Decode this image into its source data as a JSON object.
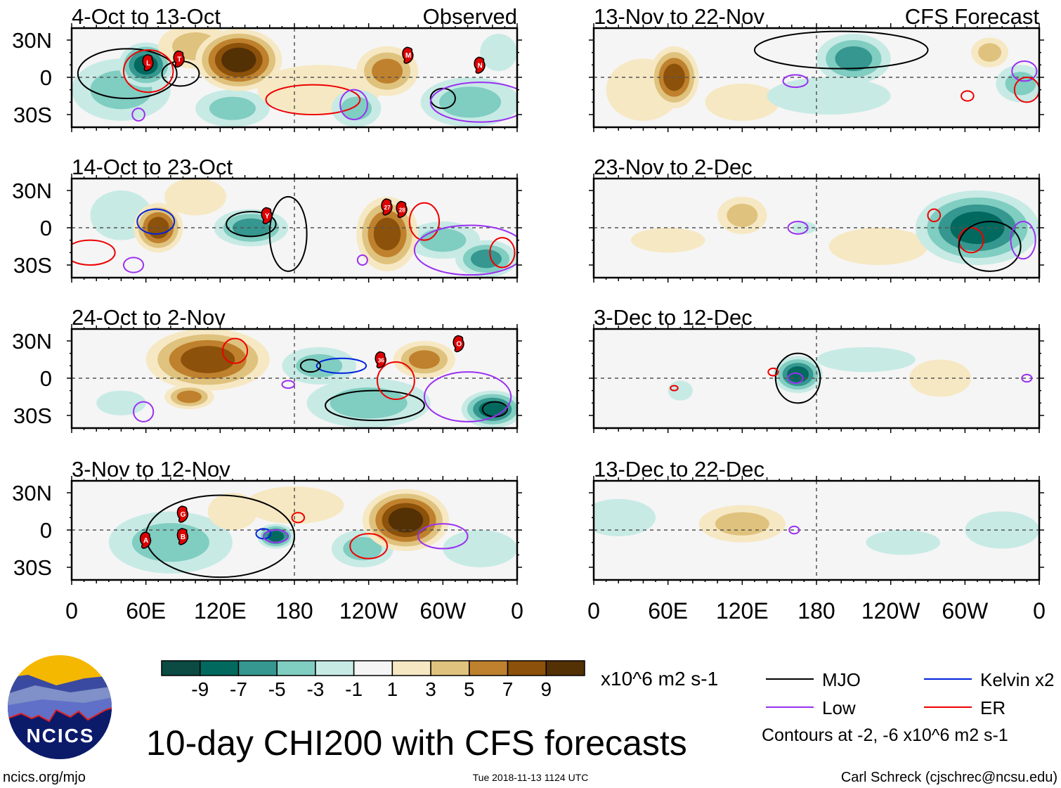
{
  "figure": {
    "title": "10-day CHI200 with CFS forecasts",
    "site": "ncics.org/mjo",
    "timestamp": "Tue 2018-11-13 1124 UTC",
    "author": "Carl Schreck (cjschrec@ncsu.edu)",
    "logo_text": "NCICS",
    "observed_label": "Observed",
    "forecast_label": "CFS Forecast"
  },
  "axes": {
    "lat_labels": [
      {
        "lat": 30,
        "text": "30N"
      },
      {
        "lat": 0,
        "text": "0"
      },
      {
        "lat": -30,
        "text": "30S"
      }
    ],
    "lon_labels": [
      {
        "lon": 0,
        "text": "0"
      },
      {
        "lon": 60,
        "text": "60E"
      },
      {
        "lon": 120,
        "text": "120E"
      },
      {
        "lon": 180,
        "text": "180"
      },
      {
        "lon": 240,
        "text": "120W"
      },
      {
        "lon": 300,
        "text": "60W"
      },
      {
        "lon": 360,
        "text": "0"
      }
    ],
    "lon_range": [
      0,
      360
    ],
    "lat_range": [
      -40,
      40
    ]
  },
  "colorbar": {
    "units": "x10^6 m2 s-1",
    "labels": [
      "-9",
      "-7",
      "-5",
      "-3",
      "-1",
      "1",
      "3",
      "5",
      "7",
      "9"
    ],
    "levels": [
      -9,
      -7,
      -5,
      -3,
      -1,
      1,
      3,
      5,
      7,
      9
    ],
    "colors": [
      "#0c4a44",
      "#02695f",
      "#35978f",
      "#80cdc1",
      "#c7eae5",
      "#f5f5f5",
      "#f6e8c3",
      "#dfc27d",
      "#bf812d",
      "#8c510a",
      "#543005"
    ]
  },
  "legend": {
    "items": [
      {
        "name": "MJO",
        "color": "#000000"
      },
      {
        "name": "Kelvin x2",
        "color": "#0022dd"
      },
      {
        "name": "Low",
        "color": "#9a30f0"
      },
      {
        "name": "ER",
        "color": "#ee0000"
      }
    ],
    "note": "Contours at -2, -6 x10^6 m2 s-1"
  },
  "contour_colors": {
    "MJO": "#000000",
    "Kelvin": "#0022dd",
    "Low": "#9a30f0",
    "ER": "#ee0000"
  },
  "panels": [
    {
      "title": "4-Oct to 13-Oct",
      "column": "observed",
      "anomalies": [
        {
          "lon": 40,
          "lat": -10,
          "rlon": 40,
          "rlat": 25,
          "value": -4
        },
        {
          "lon": 60,
          "lat": 10,
          "rlon": 22,
          "rlat": 18,
          "value": -8
        },
        {
          "lon": 130,
          "lat": -25,
          "rlon": 30,
          "rlat": 15,
          "value": -4
        },
        {
          "lon": 100,
          "lat": 25,
          "rlon": 30,
          "rlat": 18,
          "value": 4
        },
        {
          "lon": 135,
          "lat": 14,
          "rlon": 35,
          "rlat": 25,
          "value": 10
        },
        {
          "lon": 200,
          "lat": -10,
          "rlon": 50,
          "rlat": 20,
          "value": 2
        },
        {
          "lon": 255,
          "lat": 5,
          "rlon": 25,
          "rlat": 20,
          "value": 6
        },
        {
          "lon": 230,
          "lat": -25,
          "rlon": 20,
          "rlat": 15,
          "value": -5
        },
        {
          "lon": 322,
          "lat": -20,
          "rlon": 40,
          "rlat": 20,
          "value": -4
        },
        {
          "lon": 345,
          "lat": 20,
          "rlon": 15,
          "rlat": 15,
          "value": -3
        }
      ],
      "contours": [
        {
          "type": "MJO",
          "lon": 45,
          "lat": 3,
          "rlon": 40,
          "rlat": 20
        },
        {
          "type": "MJO",
          "lon": 88,
          "lat": 3,
          "rlon": 15,
          "rlat": 10
        },
        {
          "type": "MJO",
          "lon": 300,
          "lat": -17,
          "rlon": 10,
          "rlat": 8
        },
        {
          "type": "ER",
          "lon": 62,
          "lat": 5,
          "rlon": 20,
          "rlat": 17
        },
        {
          "type": "ER",
          "lon": 195,
          "lat": -18,
          "rlon": 38,
          "rlat": 12
        },
        {
          "type": "Low",
          "lon": 228,
          "lat": -22,
          "rlon": 11,
          "rlat": 12
        },
        {
          "type": "Low",
          "lon": 54,
          "lat": -30,
          "rlon": 5,
          "rlat": 5
        },
        {
          "type": "Low",
          "lon": 330,
          "lat": -20,
          "rlon": 40,
          "rlat": 16
        }
      ],
      "storms": [
        {
          "label": "L",
          "lon": 62,
          "lat": 12
        },
        {
          "label": "T",
          "lon": 87,
          "lat": 15
        },
        {
          "label": "M",
          "lon": 272,
          "lat": 18
        },
        {
          "label": "N",
          "lon": 330,
          "lat": 10
        }
      ]
    },
    {
      "title": "14-Oct to 23-Oct",
      "column": "observed",
      "anomalies": [
        {
          "lon": 40,
          "lat": 10,
          "rlon": 25,
          "rlat": 20,
          "value": -3
        },
        {
          "lon": 100,
          "lat": 25,
          "rlon": 25,
          "rlat": 15,
          "value": 3
        },
        {
          "lon": 70,
          "lat": 0,
          "rlon": 20,
          "rlat": 20,
          "value": 8
        },
        {
          "lon": 145,
          "lat": 0,
          "rlon": 30,
          "rlat": 15,
          "value": -7
        },
        {
          "lon": 300,
          "lat": -10,
          "rlon": 30,
          "rlat": 15,
          "value": -4
        },
        {
          "lon": 255,
          "lat": -5,
          "rlon": 25,
          "rlat": 30,
          "value": 9
        },
        {
          "lon": 335,
          "lat": -25,
          "rlon": 25,
          "rlat": 15,
          "value": -7
        }
      ],
      "contours": [
        {
          "type": "Kelvin",
          "lon": 68,
          "lat": 5,
          "rlon": 15,
          "rlat": 10
        },
        {
          "type": "MJO",
          "lon": 145,
          "lat": 3,
          "rlon": 20,
          "rlat": 10
        },
        {
          "type": "MJO",
          "lon": 175,
          "lat": -5,
          "rlon": 15,
          "rlat": 30
        },
        {
          "type": "ER",
          "lon": 15,
          "lat": -20,
          "rlon": 20,
          "rlat": 10
        },
        {
          "type": "ER",
          "lon": 285,
          "lat": 5,
          "rlon": 12,
          "rlat": 15
        },
        {
          "type": "ER",
          "lon": 348,
          "lat": -20,
          "rlon": 10,
          "rlat": 12
        },
        {
          "type": "Low",
          "lon": 50,
          "lat": -30,
          "rlon": 8,
          "rlat": 6
        },
        {
          "type": "Low",
          "lon": 235,
          "lat": -26,
          "rlon": 4,
          "rlat": 4
        },
        {
          "type": "Low",
          "lon": 322,
          "lat": -18,
          "rlon": 45,
          "rlat": 20
        }
      ],
      "storms": [
        {
          "label": "Y",
          "lon": 158,
          "lat": 10
        },
        {
          "label": "27",
          "lon": 255,
          "lat": 17
        },
        {
          "label": "28",
          "lon": 267,
          "lat": 15
        }
      ]
    },
    {
      "title": "24-Oct to 2-Nov",
      "column": "observed",
      "anomalies": [
        {
          "lon": 110,
          "lat": 15,
          "rlon": 50,
          "rlat": 25,
          "value": 9
        },
        {
          "lon": 95,
          "lat": -15,
          "rlon": 20,
          "rlat": 10,
          "value": 6
        },
        {
          "lon": 40,
          "lat": -20,
          "rlon": 20,
          "rlat": 10,
          "value": -3
        },
        {
          "lon": 200,
          "lat": 10,
          "rlon": 30,
          "rlat": 15,
          "value": -5
        },
        {
          "lon": 240,
          "lat": -20,
          "rlon": 50,
          "rlat": 20,
          "value": -5
        },
        {
          "lon": 285,
          "lat": 15,
          "rlon": 25,
          "rlat": 15,
          "value": 6
        },
        {
          "lon": 340,
          "lat": -25,
          "rlon": 25,
          "rlat": 15,
          "value": -8
        }
      ],
      "contours": [
        {
          "type": "ER",
          "lon": 132,
          "lat": 22,
          "rlon": 10,
          "rlat": 10
        },
        {
          "type": "Kelvin",
          "lon": 218,
          "lat": 10,
          "rlon": 20,
          "rlat": 6
        },
        {
          "type": "MJO",
          "lon": 193,
          "lat": 10,
          "rlon": 8,
          "rlat": 5
        },
        {
          "type": "MJO",
          "lon": 245,
          "lat": -22,
          "rlon": 40,
          "rlat": 12
        },
        {
          "type": "ER",
          "lon": 262,
          "lat": -2,
          "rlon": 15,
          "rlat": 15
        },
        {
          "type": "MJO",
          "lon": 342,
          "lat": -25,
          "rlon": 10,
          "rlat": 6
        },
        {
          "type": "Low",
          "lon": 175,
          "lat": -5,
          "rlon": 5,
          "rlat": 3
        },
        {
          "type": "Low",
          "lon": 58,
          "lat": -27,
          "rlon": 8,
          "rlat": 8
        },
        {
          "type": "Low",
          "lon": 320,
          "lat": -15,
          "rlon": 35,
          "rlat": 20
        }
      ],
      "storms": [
        {
          "label": "36",
          "lon": 250,
          "lat": 15
        },
        {
          "label": "O",
          "lon": 313,
          "lat": 28
        }
      ]
    },
    {
      "title": "3-Nov to 12-Nov",
      "column": "observed",
      "anomalies": [
        {
          "lon": 80,
          "lat": -10,
          "rlon": 50,
          "rlat": 25,
          "value": -5
        },
        {
          "lon": 130,
          "lat": 15,
          "rlon": 20,
          "rlat": 15,
          "value": 3
        },
        {
          "lon": 180,
          "lat": 20,
          "rlon": 40,
          "rlat": 15,
          "value": 3
        },
        {
          "lon": 165,
          "lat": -5,
          "rlon": 15,
          "rlat": 10,
          "value": -8
        },
        {
          "lon": 235,
          "lat": -15,
          "rlon": 25,
          "rlat": 15,
          "value": -4
        },
        {
          "lon": 270,
          "lat": 8,
          "rlon": 35,
          "rlat": 25,
          "value": 10
        },
        {
          "lon": 330,
          "lat": -15,
          "rlon": 30,
          "rlat": 15,
          "value": -3
        }
      ],
      "contours": [
        {
          "type": "MJO",
          "lon": 120,
          "lat": -5,
          "rlon": 60,
          "rlat": 33
        },
        {
          "type": "Kelvin",
          "lon": 155,
          "lat": -3,
          "rlon": 6,
          "rlat": 4
        },
        {
          "type": "Low",
          "lon": 165,
          "lat": -5,
          "rlon": 10,
          "rlat": 5
        },
        {
          "type": "ER",
          "lon": 183,
          "lat": 10,
          "rlon": 5,
          "rlat": 4
        },
        {
          "type": "ER",
          "lon": 240,
          "lat": -13,
          "rlon": 15,
          "rlat": 10
        },
        {
          "type": "Low",
          "lon": 300,
          "lat": -5,
          "rlon": 20,
          "rlat": 10
        }
      ],
      "storms": [
        {
          "label": "G",
          "lon": 90,
          "lat": 13
        },
        {
          "label": "A",
          "lon": 60,
          "lat": -8
        },
        {
          "label": "B",
          "lon": 90,
          "lat": -5
        }
      ]
    },
    {
      "title": "13-Nov to 22-Nov",
      "column": "forecast",
      "anomalies": [
        {
          "lon": 40,
          "lat": -10,
          "rlon": 30,
          "rlat": 25,
          "value": 3
        },
        {
          "lon": 65,
          "lat": 0,
          "rlon": 20,
          "rlat": 25,
          "value": 8
        },
        {
          "lon": 120,
          "lat": -20,
          "rlon": 30,
          "rlat": 15,
          "value": 2
        },
        {
          "lon": 190,
          "lat": -15,
          "rlon": 50,
          "rlat": 15,
          "value": -2
        },
        {
          "lon": 210,
          "lat": 15,
          "rlon": 30,
          "rlat": 20,
          "value": -6
        },
        {
          "lon": 320,
          "lat": 20,
          "rlon": 15,
          "rlat": 12,
          "value": 4
        },
        {
          "lon": 345,
          "lat": -5,
          "rlon": 20,
          "rlat": 15,
          "value": -4
        }
      ],
      "contours": [
        {
          "type": "MJO",
          "lon": 200,
          "lat": 22,
          "rlon": 70,
          "rlat": 15
        },
        {
          "type": "Low",
          "lon": 163,
          "lat": -3,
          "rlon": 10,
          "rlat": 5
        },
        {
          "type": "Low",
          "lon": 348,
          "lat": 5,
          "rlon": 10,
          "rlat": 8
        },
        {
          "type": "ER",
          "lon": 350,
          "lat": -10,
          "rlon": 10,
          "rlat": 10
        },
        {
          "type": "ER",
          "lon": 302,
          "lat": -15,
          "rlon": 5,
          "rlat": 4
        }
      ],
      "storms": []
    },
    {
      "title": "23-Nov to 2-Dec",
      "column": "forecast",
      "anomalies": [
        {
          "lon": 60,
          "lat": -10,
          "rlon": 30,
          "rlat": 10,
          "value": 3
        },
        {
          "lon": 120,
          "lat": 10,
          "rlon": 20,
          "rlat": 15,
          "value": 4
        },
        {
          "lon": 230,
          "lat": -15,
          "rlon": 40,
          "rlat": 15,
          "value": 3
        },
        {
          "lon": 170,
          "lat": 0,
          "rlon": 10,
          "rlat": 5,
          "value": -2
        },
        {
          "lon": 310,
          "lat": 0,
          "rlon": 50,
          "rlat": 30,
          "value": -9
        }
      ],
      "contours": [
        {
          "type": "ER",
          "lon": 305,
          "lat": -10,
          "rlon": 10,
          "rlat": 10
        },
        {
          "type": "ER",
          "lon": 275,
          "lat": 10,
          "rlon": 5,
          "rlat": 5
        },
        {
          "type": "MJO",
          "lon": 320,
          "lat": -15,
          "rlon": 25,
          "rlat": 20
        },
        {
          "type": "Low",
          "lon": 165,
          "lat": 0,
          "rlon": 8,
          "rlat": 5
        },
        {
          "type": "Low",
          "lon": 347,
          "lat": -10,
          "rlon": 10,
          "rlat": 15
        }
      ],
      "storms": []
    },
    {
      "title": "3-Dec to 12-Dec",
      "column": "forecast",
      "anomalies": [
        {
          "lon": 70,
          "lat": -10,
          "rlon": 10,
          "rlat": 8,
          "value": -2
        },
        {
          "lon": 220,
          "lat": 15,
          "rlon": 40,
          "rlat": 10,
          "value": -2
        },
        {
          "lon": 165,
          "lat": 3,
          "rlon": 20,
          "rlat": 15,
          "value": -8
        },
        {
          "lon": 280,
          "lat": 0,
          "rlon": 25,
          "rlat": 15,
          "value": 2
        }
      ],
      "contours": [
        {
          "type": "MJO",
          "lon": 165,
          "lat": 0,
          "rlon": 18,
          "rlat": 20
        },
        {
          "type": "ER",
          "lon": 145,
          "lat": 5,
          "rlon": 4,
          "rlat": 3
        },
        {
          "type": "Low",
          "lon": 163,
          "lat": 0,
          "rlon": 6,
          "rlat": 4
        },
        {
          "type": "ER",
          "lon": 65,
          "lat": -8,
          "rlon": 3,
          "rlat": 2
        },
        {
          "type": "Low",
          "lon": 350,
          "lat": 0,
          "rlon": 4,
          "rlat": 3
        }
      ],
      "storms": []
    },
    {
      "title": "13-Dec to 22-Dec",
      "column": "forecast",
      "anomalies": [
        {
          "lon": 20,
          "lat": 10,
          "rlon": 30,
          "rlat": 15,
          "value": -2
        },
        {
          "lon": 120,
          "lat": 5,
          "rlon": 35,
          "rlat": 15,
          "value": 4
        },
        {
          "lon": 250,
          "lat": -10,
          "rlon": 30,
          "rlat": 10,
          "value": -2
        },
        {
          "lon": 330,
          "lat": 0,
          "rlon": 30,
          "rlat": 15,
          "value": -3
        }
      ],
      "contours": [
        {
          "type": "Low",
          "lon": 162,
          "lat": 0,
          "rlon": 4,
          "rlat": 3
        }
      ],
      "storms": []
    }
  ]
}
